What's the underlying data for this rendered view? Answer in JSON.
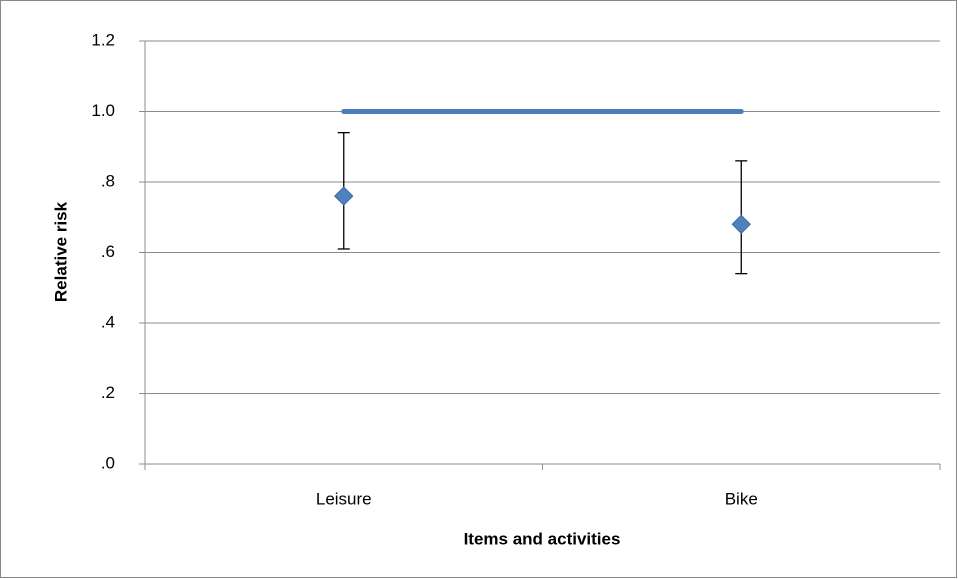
{
  "chart_data": {
    "type": "errorbar",
    "x_label": "Items and activities",
    "y_label": "Relative risk",
    "categories": [
      "Leisure",
      "Bike"
    ],
    "series": [
      {
        "type": "point",
        "color": "#4f81bd",
        "values": [
          0.76,
          0.68
        ],
        "ci_lower": [
          0.61,
          0.54
        ],
        "ci_upper": [
          0.94,
          0.86
        ]
      },
      {
        "type": "line",
        "color": "#4a7ebb",
        "values": [
          1,
          1
        ]
      }
    ],
    "ylim": [
      0,
      1.2
    ],
    "yticks": [
      {
        "value": 0,
        "label": ".0"
      },
      {
        "value": 0.2,
        "label": ".2"
      },
      {
        "value": 0.4,
        "label": ".4"
      },
      {
        "value": 0.6,
        "label": ".6"
      },
      {
        "value": 0.8,
        "label": ".8"
      },
      {
        "value": 1,
        "label": "1.0"
      },
      1.2
    ],
    "grid": true
  }
}
